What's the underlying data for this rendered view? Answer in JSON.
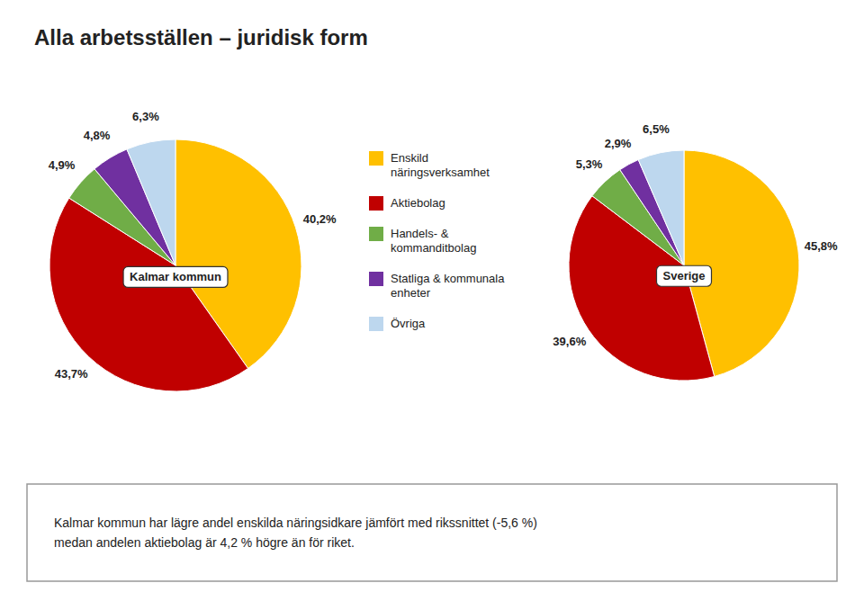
{
  "chart_data": {
    "type": "pie",
    "title": "Alla arbetsställen – juridisk form",
    "categories": [
      "Enskild\nnäringsverksamhet",
      "Aktiebolag",
      "Handels- &\nkommanditbolag",
      "Statliga & kommunala\nenheter",
      "Övriga"
    ],
    "colors": [
      "#FFC000",
      "#C00000",
      "#70AD47",
      "#7030A0",
      "#BDD7EE"
    ],
    "series": [
      {
        "name": "Kalmar kommun",
        "values": [
          40.2,
          43.7,
          4.9,
          4.8,
          6.3
        ],
        "value_labels": [
          "40,2%",
          "43,7%",
          "4,9%",
          "4,8%",
          "6,3%"
        ]
      },
      {
        "name": "Sverige",
        "values": [
          45.8,
          39.6,
          5.3,
          2.9,
          6.5
        ],
        "value_labels": [
          "45,8%",
          "39,6%",
          "5,3%",
          "2,9%",
          "6,5%"
        ]
      }
    ],
    "data_labels": true,
    "legend": "center",
    "annotations": [
      "Kalmar kommun har lägre andel enskilda näringsidkare jämfört med rikssnittet (-5,6 %)\nmedan andelen aktiebolag är 4,2 % högre än för riket."
    ]
  }
}
